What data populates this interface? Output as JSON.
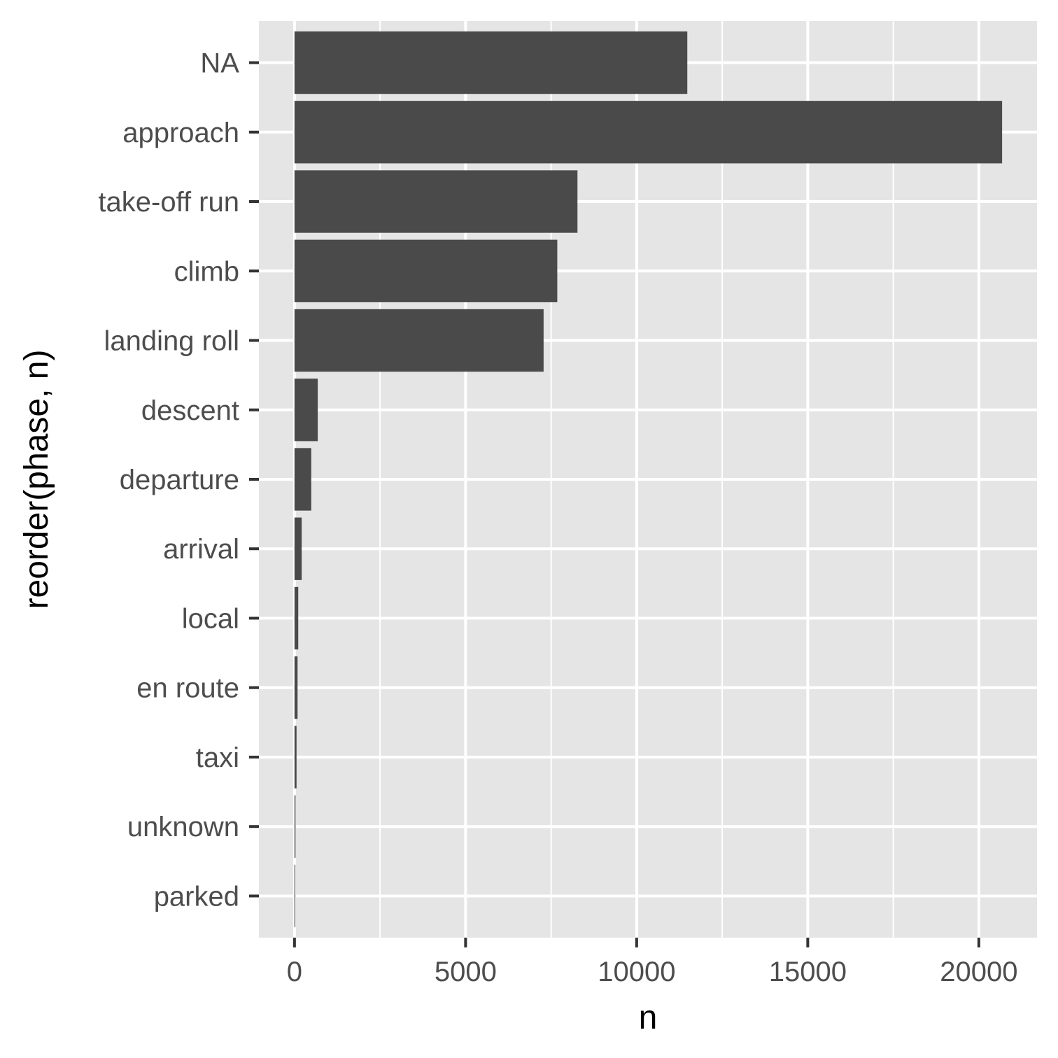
{
  "chart_data": {
    "type": "bar",
    "orientation": "horizontal",
    "xlabel": "n",
    "ylabel": "reorder(phase, n)",
    "categories": [
      "NA",
      "approach",
      "take-off run",
      "climb",
      "landing roll",
      "descent",
      "departure",
      "arrival",
      "local",
      "en route",
      "taxi",
      "unknown",
      "parked"
    ],
    "values": [
      11480,
      20680,
      8270,
      7680,
      7280,
      680,
      490,
      210,
      110,
      90,
      60,
      30,
      15
    ],
    "xlim": [
      -1040,
      21700
    ],
    "xticks": [
      0,
      5000,
      10000,
      15000,
      20000
    ],
    "xticklabels": [
      "0",
      "5000",
      "10000",
      "15000",
      "20000"
    ],
    "grid": true,
    "bar_color": "#4a4a4a",
    "panel_color": "#e5e5e5",
    "grid_color": "#ffffff"
  }
}
